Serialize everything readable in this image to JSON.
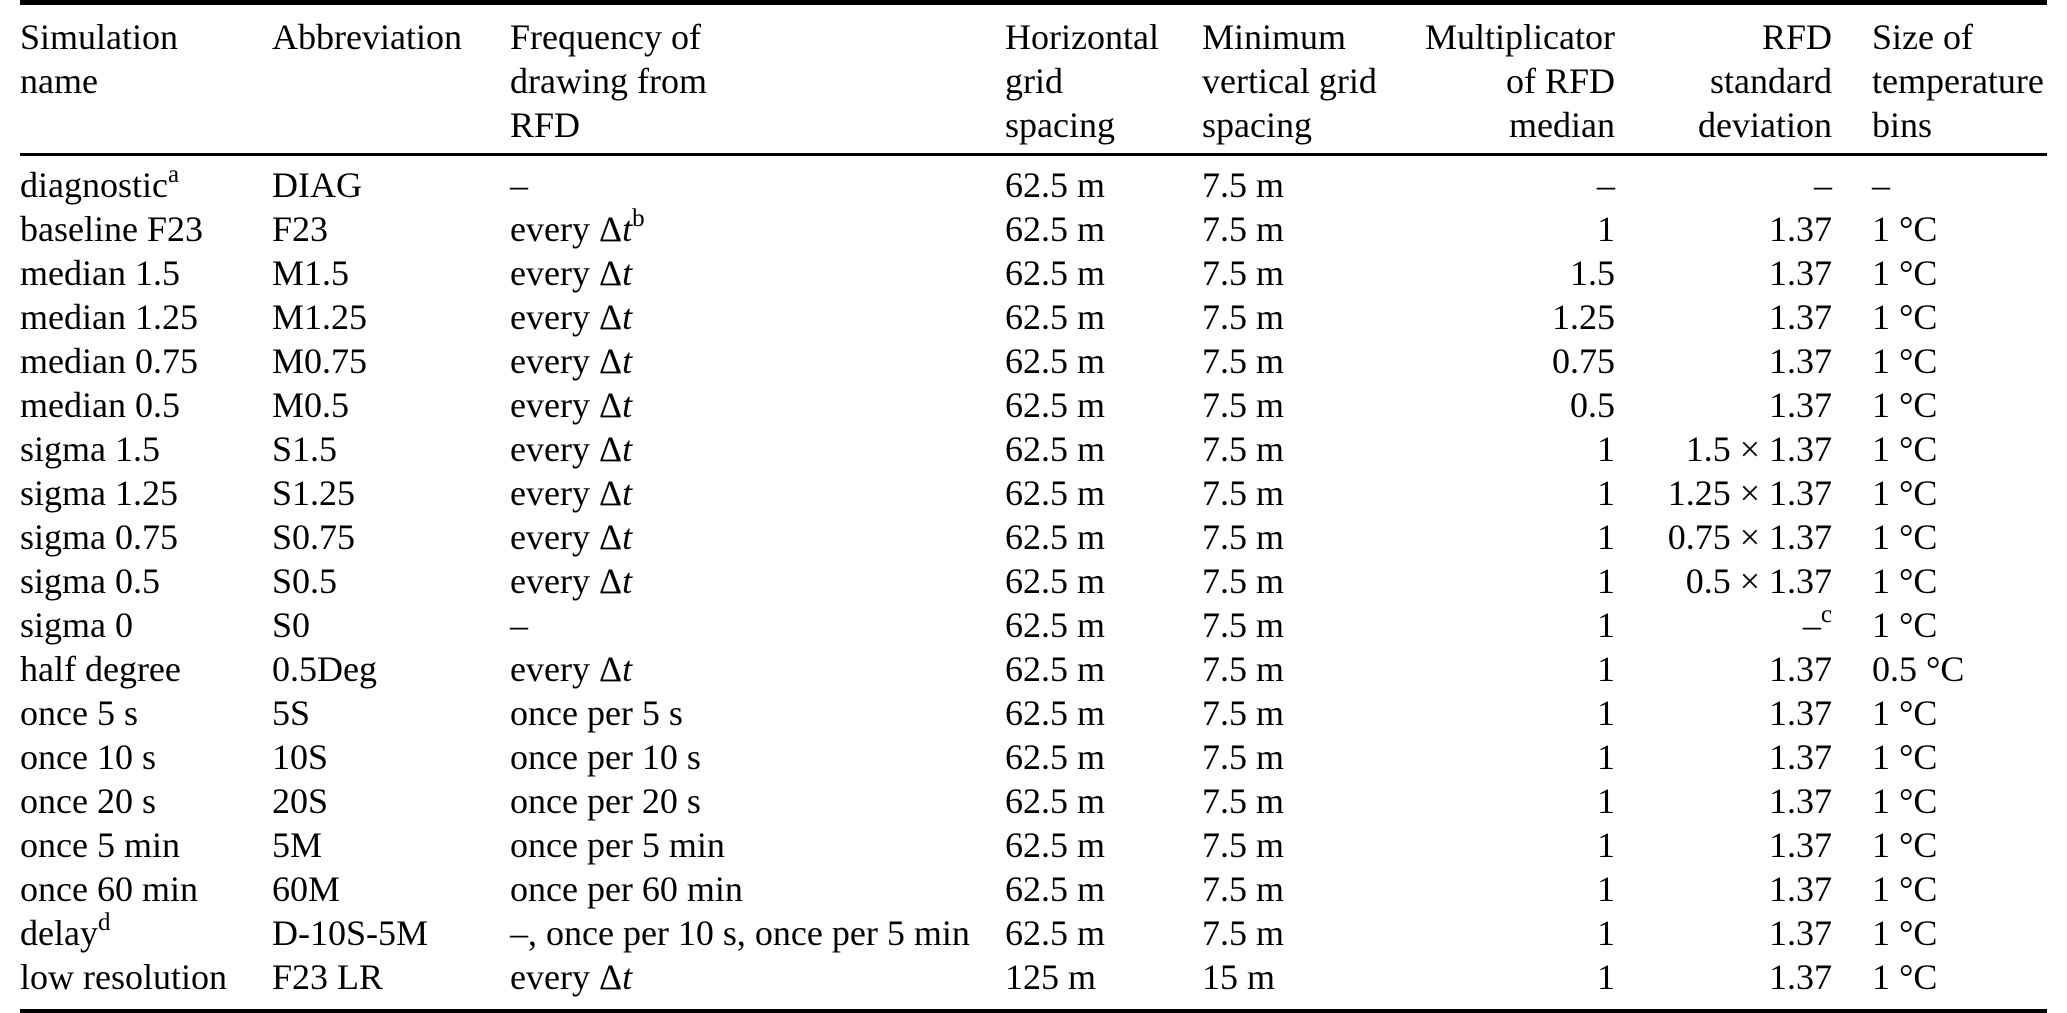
{
  "table": {
    "header": [
      {
        "align": "left",
        "lines": [
          "Simulation",
          "name"
        ]
      },
      {
        "align": "left",
        "lines": [
          "Abbreviation"
        ]
      },
      {
        "align": "left",
        "lines": [
          "Frequency of",
          "drawing from",
          "RFD"
        ]
      },
      {
        "align": "left",
        "lines": [
          "Horizontal",
          "grid",
          "spacing"
        ]
      },
      {
        "align": "left",
        "lines": [
          "Minimum",
          "vertical grid",
          "spacing"
        ]
      },
      {
        "align": "right",
        "lines": [
          "Multiplicator",
          "of RFD",
          "median"
        ]
      },
      {
        "align": "right",
        "lines": [
          "RFD",
          "standard",
          "deviation"
        ]
      },
      {
        "align": "left",
        "lines": [
          "Size of",
          "temperature",
          "bins"
        ]
      }
    ],
    "rows": [
      {
        "name": "diagnostic",
        "name_sup": "a",
        "abbr": "DIAG",
        "freq": "–",
        "freq_sup": "",
        "h_spacing": "62.5 m",
        "v_spacing": "7.5 m",
        "multiplicator": "–",
        "std_dev": "–",
        "std_sup": "",
        "temp_bins": "–"
      },
      {
        "name": "baseline F23",
        "name_sup": "",
        "abbr": "F23",
        "freq": "every Δt",
        "freq_sup": "b",
        "h_spacing": "62.5 m",
        "v_spacing": "7.5 m",
        "multiplicator": "1",
        "std_dev": "1.37",
        "std_sup": "",
        "temp_bins": "1 °C"
      },
      {
        "name": "median 1.5",
        "name_sup": "",
        "abbr": "M1.5",
        "freq": "every Δt",
        "freq_sup": "",
        "h_spacing": "62.5 m",
        "v_spacing": "7.5 m",
        "multiplicator": "1.5",
        "std_dev": "1.37",
        "std_sup": "",
        "temp_bins": "1 °C"
      },
      {
        "name": "median 1.25",
        "name_sup": "",
        "abbr": "M1.25",
        "freq": "every Δt",
        "freq_sup": "",
        "h_spacing": "62.5 m",
        "v_spacing": "7.5 m",
        "multiplicator": "1.25",
        "std_dev": "1.37",
        "std_sup": "",
        "temp_bins": "1 °C"
      },
      {
        "name": "median 0.75",
        "name_sup": "",
        "abbr": "M0.75",
        "freq": "every Δt",
        "freq_sup": "",
        "h_spacing": "62.5 m",
        "v_spacing": "7.5 m",
        "multiplicator": "0.75",
        "std_dev": "1.37",
        "std_sup": "",
        "temp_bins": "1 °C"
      },
      {
        "name": "median 0.5",
        "name_sup": "",
        "abbr": "M0.5",
        "freq": "every Δt",
        "freq_sup": "",
        "h_spacing": "62.5 m",
        "v_spacing": "7.5 m",
        "multiplicator": "0.5",
        "std_dev": "1.37",
        "std_sup": "",
        "temp_bins": "1 °C"
      },
      {
        "name": "sigma 1.5",
        "name_sup": "",
        "abbr": "S1.5",
        "freq": "every Δt",
        "freq_sup": "",
        "h_spacing": "62.5 m",
        "v_spacing": "7.5 m",
        "multiplicator": "1",
        "std_dev": "1.5 × 1.37",
        "std_sup": "",
        "temp_bins": "1 °C"
      },
      {
        "name": "sigma 1.25",
        "name_sup": "",
        "abbr": "S1.25",
        "freq": "every Δt",
        "freq_sup": "",
        "h_spacing": "62.5 m",
        "v_spacing": "7.5 m",
        "multiplicator": "1",
        "std_dev": "1.25 × 1.37",
        "std_sup": "",
        "temp_bins": "1 °C"
      },
      {
        "name": "sigma 0.75",
        "name_sup": "",
        "abbr": "S0.75",
        "freq": "every Δt",
        "freq_sup": "",
        "h_spacing": "62.5 m",
        "v_spacing": "7.5 m",
        "multiplicator": "1",
        "std_dev": "0.75 × 1.37",
        "std_sup": "",
        "temp_bins": "1 °C"
      },
      {
        "name": "sigma 0.5",
        "name_sup": "",
        "abbr": "S0.5",
        "freq": "every Δt",
        "freq_sup": "",
        "h_spacing": "62.5 m",
        "v_spacing": "7.5 m",
        "multiplicator": "1",
        "std_dev": "0.5 × 1.37",
        "std_sup": "",
        "temp_bins": "1 °C"
      },
      {
        "name": "sigma 0",
        "name_sup": "",
        "abbr": "S0",
        "freq": "–",
        "freq_sup": "",
        "h_spacing": "62.5 m",
        "v_spacing": "7.5 m",
        "multiplicator": "1",
        "std_dev": "–",
        "std_sup": "c",
        "temp_bins": "1 °C"
      },
      {
        "name": "half degree",
        "name_sup": "",
        "abbr": "0.5Deg",
        "freq": "every Δt",
        "freq_sup": "",
        "h_spacing": "62.5 m",
        "v_spacing": "7.5 m",
        "multiplicator": "1",
        "std_dev": "1.37",
        "std_sup": "",
        "temp_bins": "0.5 °C"
      },
      {
        "name": "once 5 s",
        "name_sup": "",
        "abbr": "5S",
        "freq": "once per 5 s",
        "freq_sup": "",
        "h_spacing": "62.5 m",
        "v_spacing": "7.5 m",
        "multiplicator": "1",
        "std_dev": "1.37",
        "std_sup": "",
        "temp_bins": "1 °C"
      },
      {
        "name": "once 10 s",
        "name_sup": "",
        "abbr": "10S",
        "freq": "once per 10 s",
        "freq_sup": "",
        "h_spacing": "62.5 m",
        "v_spacing": "7.5 m",
        "multiplicator": "1",
        "std_dev": "1.37",
        "std_sup": "",
        "temp_bins": "1 °C"
      },
      {
        "name": "once 20 s",
        "name_sup": "",
        "abbr": "20S",
        "freq": "once per 20 s",
        "freq_sup": "",
        "h_spacing": "62.5 m",
        "v_spacing": "7.5 m",
        "multiplicator": "1",
        "std_dev": "1.37",
        "std_sup": "",
        "temp_bins": "1 °C"
      },
      {
        "name": "once 5 min",
        "name_sup": "",
        "abbr": "5M",
        "freq": "once per 5 min",
        "freq_sup": "",
        "h_spacing": "62.5 m",
        "v_spacing": "7.5 m",
        "multiplicator": "1",
        "std_dev": "1.37",
        "std_sup": "",
        "temp_bins": "1 °C"
      },
      {
        "name": "once 60 min",
        "name_sup": "",
        "abbr": "60M",
        "freq": "once per 60 min",
        "freq_sup": "",
        "h_spacing": "62.5 m",
        "v_spacing": "7.5 m",
        "multiplicator": "1",
        "std_dev": "1.37",
        "std_sup": "",
        "temp_bins": "1 °C"
      },
      {
        "name": "delay",
        "name_sup": "d",
        "abbr": "D-10S-5M",
        "freq": "–, once per 10 s, once per 5 min",
        "freq_sup": "",
        "h_spacing": "62.5 m",
        "v_spacing": "7.5 m",
        "multiplicator": "1",
        "std_dev": "1.37",
        "std_sup": "",
        "temp_bins": "1 °C"
      },
      {
        "name": "low resolution",
        "name_sup": "",
        "abbr": "F23 LR",
        "freq": "every Δt",
        "freq_sup": "",
        "h_spacing": "125 m",
        "v_spacing": "15 m",
        "multiplicator": "1",
        "std_dev": "1.37",
        "std_sup": "",
        "temp_bins": "1 °C"
      }
    ]
  }
}
